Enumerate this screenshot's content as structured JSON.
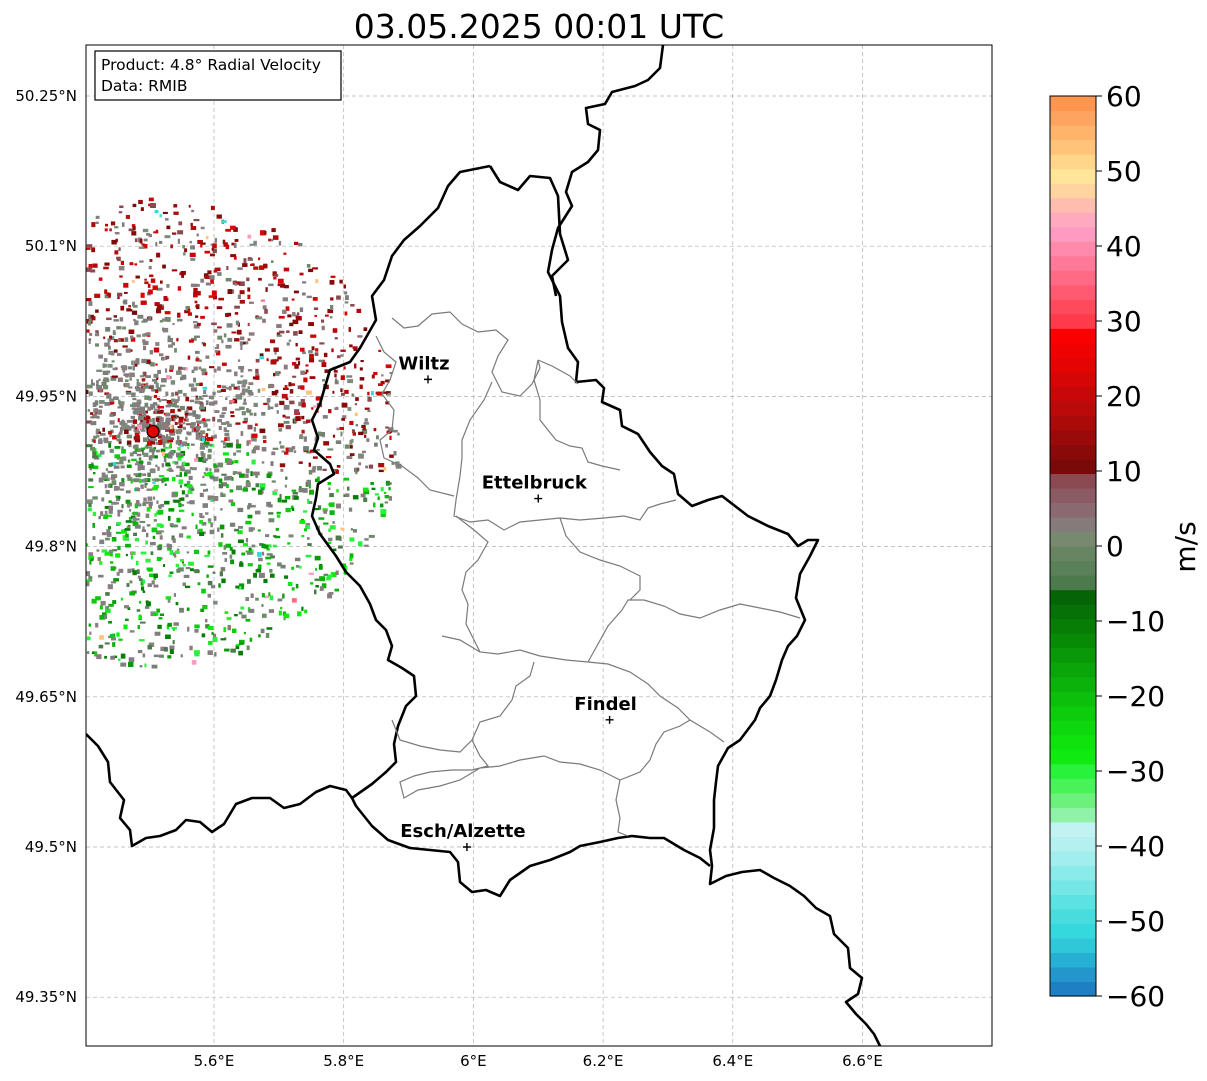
{
  "title": "03.05.2025 00:01 UTC",
  "info": {
    "product": "Product: 4.8° Radial Velocity",
    "data_source": "Data: RMIB"
  },
  "map": {
    "lon_range": [
      5.4,
      6.8
    ],
    "lat_range": [
      49.3,
      50.3
    ],
    "lat_ticks": [
      {
        "value": 50.25,
        "label": "50.25°N"
      },
      {
        "value": 50.1,
        "label": "50.1°N"
      },
      {
        "value": 49.95,
        "label": "49.95°N"
      },
      {
        "value": 49.8,
        "label": "49.8°N"
      },
      {
        "value": 49.65,
        "label": "49.65°N"
      },
      {
        "value": 49.5,
        "label": "49.5°N"
      },
      {
        "value": 49.35,
        "label": "49.35°N"
      }
    ],
    "lon_ticks": [
      {
        "value": 5.6,
        "label": "5.6°E"
      },
      {
        "value": 5.8,
        "label": "5.8°E"
      },
      {
        "value": 6.0,
        "label": "6°E"
      },
      {
        "value": 6.2,
        "label": "6.2°E"
      },
      {
        "value": 6.4,
        "label": "6.4°E"
      },
      {
        "value": 6.6,
        "label": "6.6°E"
      }
    ],
    "gridlines": true,
    "radar_site": {
      "lon": 5.506,
      "lat": 49.915,
      "marker_color": "#e00000"
    },
    "cities": [
      {
        "name": "Wiltz",
        "lon": 5.93,
        "lat": 49.967
      },
      {
        "name": "Ettelbruck",
        "lon": 6.1,
        "lat": 49.848
      },
      {
        "name": "Findel",
        "lon": 6.21,
        "lat": 49.627
      },
      {
        "name": "Esch/Alzette",
        "lon": 5.99,
        "lat": 49.5
      }
    ]
  },
  "colorbar": {
    "label": "m/s",
    "min": -60,
    "max": 60,
    "ticks": [
      {
        "value": 60,
        "label": "60"
      },
      {
        "value": 50,
        "label": "50"
      },
      {
        "value": 40,
        "label": "40"
      },
      {
        "value": 30,
        "label": "30"
      },
      {
        "value": 20,
        "label": "20"
      },
      {
        "value": 10,
        "label": "10"
      },
      {
        "value": 0,
        "label": "0"
      },
      {
        "value": -10,
        "label": "−10"
      },
      {
        "value": -20,
        "label": "−20"
      },
      {
        "value": -30,
        "label": "−30"
      },
      {
        "value": -40,
        "label": "−40"
      },
      {
        "value": -50,
        "label": "−50"
      },
      {
        "value": -60,
        "label": "−60"
      }
    ],
    "colors": [
      "#1f7fc4",
      "#2396cc",
      "#27afd4",
      "#2ec8d9",
      "#35d8dc",
      "#48dcdf",
      "#5de2e2",
      "#74e6e6",
      "#8beaea",
      "#a2eeee",
      "#b5f0f0",
      "#c2f2f2",
      "#8ff2a8",
      "#6cf27c",
      "#4af25a",
      "#28f23c",
      "#10ea10",
      "#0ee30e",
      "#0dd70d",
      "#0ccc0c",
      "#0bbf0b",
      "#0ab20a",
      "#09a509",
      "#089808",
      "#078b07",
      "#067e06",
      "#067106",
      "#056405",
      "#4d7a4d",
      "#5a8058",
      "#688563",
      "#778a70",
      "#867b7b",
      "#8a6a70",
      "#8b5a62",
      "#8b4a52",
      "#7a0a0a",
      "#8a0a0a",
      "#9a0a0a",
      "#aa0a0a",
      "#ba0a0a",
      "#c80808",
      "#d60606",
      "#e40404",
      "#f00202",
      "#fa0000",
      "#ff3a4a",
      "#ff4a5c",
      "#ff5a70",
      "#ff6a84",
      "#ff7a98",
      "#ff8aac",
      "#ff9ac0",
      "#ffaabf",
      "#ffbdb0",
      "#ffd4a0",
      "#ffe59a",
      "#ffd68a",
      "#ffc47a",
      "#ffb46c",
      "#ffa45e",
      "#ff9650"
    ]
  }
}
